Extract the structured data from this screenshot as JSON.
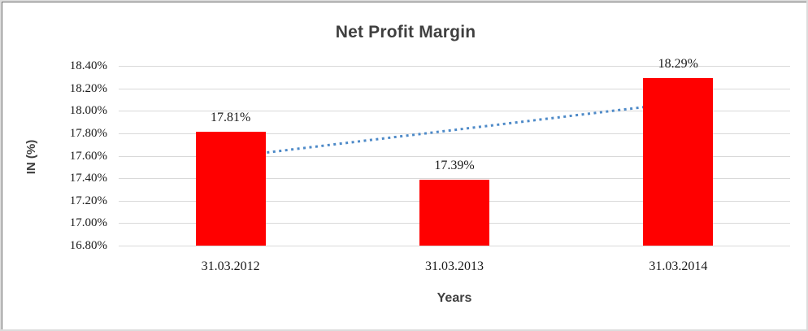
{
  "chart_data": {
    "type": "bar",
    "title": "Net Profit Margin",
    "xlabel": "Years",
    "ylabel": "IN (%)",
    "categories": [
      "31.03.2012",
      "31.03.2013",
      "31.03.2014"
    ],
    "values": [
      17.81,
      17.39,
      18.29
    ],
    "data_labels": [
      "17.81%",
      "17.39%",
      "18.29%"
    ],
    "yticks": [
      "18.40%",
      "18.20%",
      "18.00%",
      "17.80%",
      "17.60%",
      "17.40%",
      "17.20%",
      "17.00%",
      "16.80%"
    ],
    "ylim": [
      16.8,
      18.4
    ],
    "ytick_step": 0.2,
    "grid": true,
    "legend": "none",
    "bar_color": "#ff0000",
    "gridline_color": "#d9d9d9",
    "trendline": {
      "type": "linear",
      "style": "dotted",
      "color": "#4e8ac8"
    }
  }
}
